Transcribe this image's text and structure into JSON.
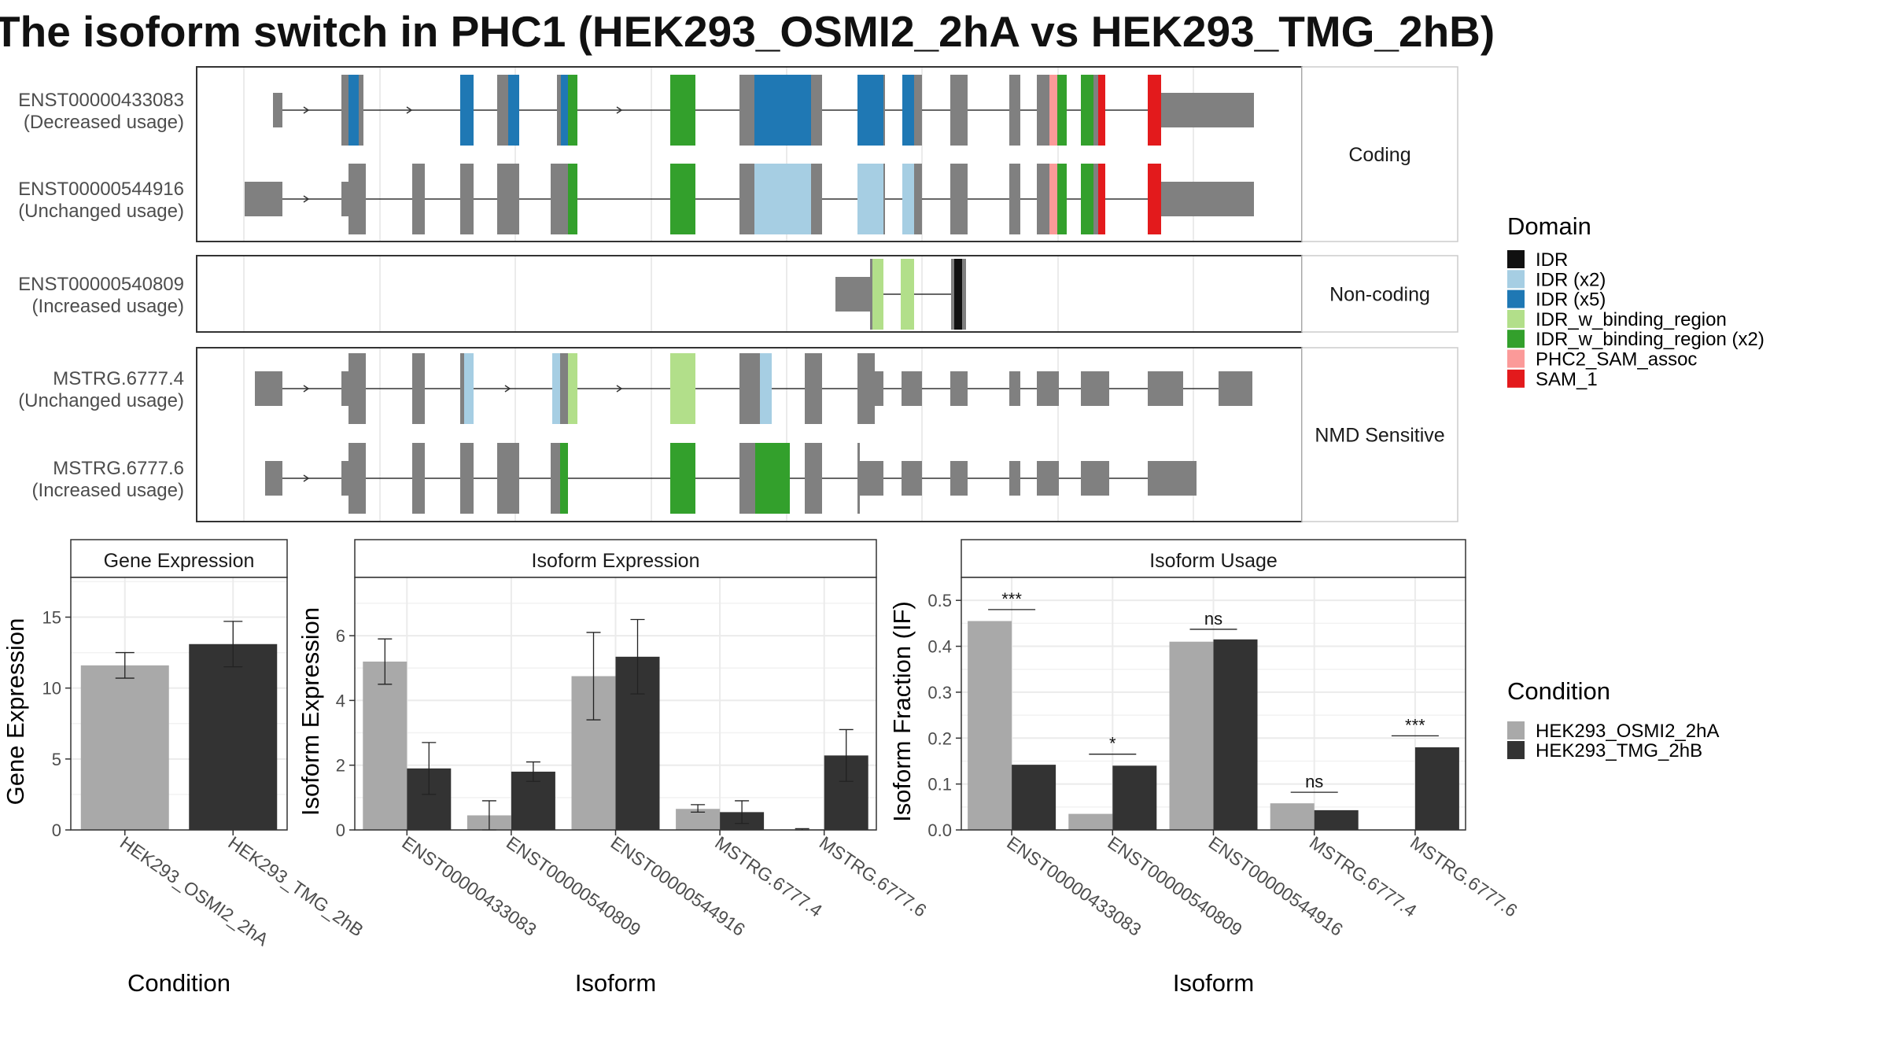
{
  "title": "The isoform switch in PHC1 (HEK293_OSMI2_2hA vs HEK293_TMG_2hB)",
  "colors": {
    "IDR": "#111111",
    "IDR (x2)": "#a6cee3",
    "IDR (x5)": "#1f78b4",
    "IDR_w_binding_region": "#b2df8a",
    "IDR_w_binding_region (x2)": "#33a02c",
    "PHC2_SAM_assoc": "#fb9a99",
    "SAM_1": "#e31a1c",
    "exon": "#808080",
    "cond_a": "#a9a9a9",
    "cond_b": "#333333"
  },
  "legend_domain": {
    "title": "Domain",
    "items": [
      "IDR",
      "IDR (x2)",
      "IDR (x5)",
      "IDR_w_binding_region",
      "IDR_w_binding_region (x2)",
      "PHC2_SAM_assoc",
      "SAM_1"
    ]
  },
  "legend_condition": {
    "title": "Condition",
    "items": [
      "HEK293_OSMI2_2hA",
      "HEK293_TMG_2hB"
    ]
  },
  "transcripts": [
    {
      "group": "Coding",
      "rows": [
        {
          "name": "ENST00000433083",
          "usage": "(Decreased usage)"
        },
        {
          "name": "ENST00000544916",
          "usage": "(Unchanged usage)"
        }
      ]
    },
    {
      "group": "Non-coding",
      "rows": [
        {
          "name": "ENST00000540809",
          "usage": "(Increased usage)"
        }
      ]
    },
    {
      "group": "NMD Sensitive",
      "rows": [
        {
          "name": "MSTRG.6777.4",
          "usage": "(Unchanged usage)"
        },
        {
          "name": "MSTRG.6777.6",
          "usage": "(Increased usage)"
        }
      ]
    }
  ],
  "chart_data": [
    {
      "type": "bar",
      "title": "Gene Expression",
      "xlabel": "Condition",
      "ylabel": "Gene Expression",
      "categories": [
        "HEK293_OSMI2_2hA",
        "HEK293_TMG_2hB"
      ],
      "values": [
        11.6,
        13.1
      ],
      "errors": [
        [
          10.7,
          12.5
        ],
        [
          11.5,
          14.7
        ]
      ],
      "yticks": [
        0,
        5,
        10,
        15
      ],
      "ylim": [
        0,
        17.8
      ]
    },
    {
      "type": "bar",
      "title": "Isoform Expression",
      "xlabel": "Isoform",
      "ylabel": "Isoform Expression",
      "categories": [
        "ENST00000433083",
        "ENST00000540809",
        "ENST00000544916",
        "MSTRG.6777.4",
        "MSTRG.6777.6"
      ],
      "series": [
        {
          "name": "HEK293_OSMI2_2hA",
          "values": [
            5.2,
            0.45,
            4.75,
            0.65,
            0.02
          ],
          "errors": [
            [
              4.5,
              5.9
            ],
            [
              0.0,
              0.9
            ],
            [
              3.4,
              6.1
            ],
            [
              0.55,
              0.78
            ],
            [
              0.0,
              0.04
            ]
          ]
        },
        {
          "name": "HEK293_TMG_2hB",
          "values": [
            1.9,
            1.8,
            5.35,
            0.55,
            2.3
          ],
          "errors": [
            [
              1.1,
              2.7
            ],
            [
              1.5,
              2.1
            ],
            [
              4.2,
              6.5
            ],
            [
              0.2,
              0.9
            ],
            [
              1.5,
              3.1
            ]
          ]
        }
      ],
      "yticks": [
        0,
        2,
        4,
        6
      ],
      "ylim": [
        0,
        7.8
      ]
    },
    {
      "type": "bar",
      "title": "Isoform Usage",
      "xlabel": "Isoform",
      "ylabel": "Isoform Fraction (IF)",
      "categories": [
        "ENST00000433083",
        "ENST00000540809",
        "ENST00000544916",
        "MSTRG.6777.4",
        "MSTRG.6777.6"
      ],
      "series": [
        {
          "name": "HEK293_OSMI2_2hA",
          "values": [
            0.455,
            0.035,
            0.41,
            0.058,
            0.0
          ]
        },
        {
          "name": "HEK293_TMG_2hB",
          "values": [
            0.142,
            0.14,
            0.415,
            0.043,
            0.18
          ]
        }
      ],
      "significance": [
        "***",
        "*",
        "ns",
        "ns",
        "***"
      ],
      "sig_levels": [
        0.48,
        0.165,
        0.437,
        0.082,
        0.205
      ],
      "yticks": [
        0.0,
        0.1,
        0.2,
        0.3,
        0.4,
        0.5
      ],
      "ylim": [
        0,
        0.55
      ]
    }
  ]
}
